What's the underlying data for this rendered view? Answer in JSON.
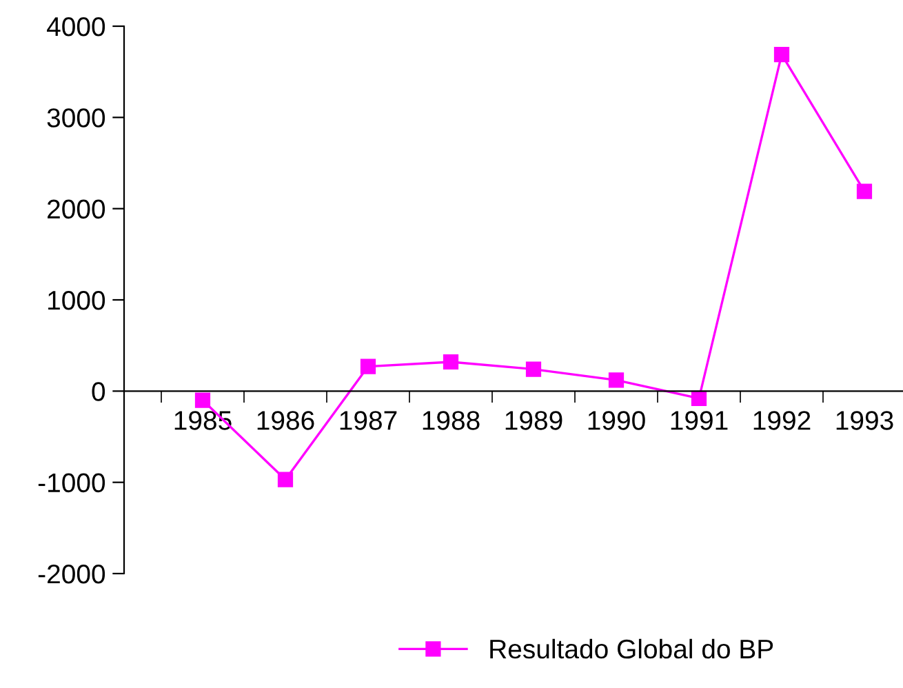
{
  "chart_data": {
    "type": "line",
    "categories": [
      "1985",
      "1986",
      "1987",
      "1988",
      "1989",
      "1990",
      "1991",
      "1992",
      "1993"
    ],
    "series": [
      {
        "name": "Resultado Global do BP",
        "color": "#ff00ff",
        "values": [
          -100,
          -970,
          270,
          320,
          240,
          120,
          -80,
          3690,
          2190
        ]
      }
    ],
    "ylim": [
      -2000,
      4000
    ],
    "yticks": [
      -2000,
      -1000,
      0,
      1000,
      2000,
      3000,
      4000
    ],
    "marker": "square",
    "line_style": "solid",
    "grid": false,
    "legend": "bottom"
  }
}
